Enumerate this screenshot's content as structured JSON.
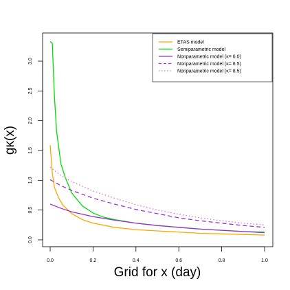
{
  "chart_data": {
    "type": "line",
    "xlabel": "Grid for x (day)",
    "ylabel": "gκ(x)",
    "xlim": [
      0,
      1
    ],
    "ylim": [
      0,
      3.3
    ],
    "xticks": [
      0.0,
      0.2,
      0.4,
      0.6,
      0.8,
      1.0
    ],
    "xtick_labels": [
      "0.0",
      "0.2",
      "0.4",
      "0.6",
      "0.8",
      "1.0"
    ],
    "yticks": [
      0.0,
      0.5,
      1.0,
      1.5,
      2.0,
      2.5,
      3.0
    ],
    "ytick_labels": [
      "0.0",
      "0.5",
      "1.0",
      "1.5",
      "2.0",
      "2.5",
      "3.0"
    ],
    "grid": false,
    "legend_position": "top-right",
    "series": [
      {
        "name": "ETAS model",
        "color": "#ffa500",
        "style": "solid",
        "x": [
          0.0,
          0.01,
          0.02,
          0.04,
          0.06,
          0.1,
          0.15,
          0.2,
          0.3,
          0.4,
          0.5,
          0.6,
          0.7,
          0.8,
          0.9,
          1.0
        ],
        "y": [
          1.59,
          1.12,
          0.88,
          0.7,
          0.58,
          0.44,
          0.34,
          0.28,
          0.21,
          0.17,
          0.15,
          0.13,
          0.11,
          0.1,
          0.09,
          0.08
        ]
      },
      {
        "name": "Semiparametric model",
        "color": "#00dd00",
        "style": "solid",
        "x": [
          0.0,
          0.01,
          0.02,
          0.03,
          0.05,
          0.07,
          0.1,
          0.15,
          0.2,
          0.25,
          0.3,
          0.4,
          0.5,
          0.6,
          0.7,
          0.8,
          0.9,
          1.0
        ],
        "y": [
          3.33,
          3.3,
          2.4,
          1.82,
          1.28,
          1.05,
          0.79,
          0.57,
          0.45,
          0.38,
          0.34,
          0.28,
          0.24,
          0.21,
          0.18,
          0.16,
          0.14,
          0.13
        ]
      },
      {
        "name": "Nonparametric model (κ= 6.0)",
        "color": "#9932cc",
        "style": "solid",
        "x": [
          0.0,
          0.05,
          0.1,
          0.2,
          0.3,
          0.4,
          0.5,
          0.6,
          0.7,
          0.8,
          0.9,
          1.0
        ],
        "y": [
          0.6,
          0.53,
          0.47,
          0.39,
          0.33,
          0.28,
          0.24,
          0.21,
          0.18,
          0.16,
          0.14,
          0.12
        ]
      },
      {
        "name": "Nonparametric model (κ= 6.5)",
        "color": "#9932cc",
        "style": "dashed",
        "x": [
          0.0,
          0.05,
          0.1,
          0.2,
          0.3,
          0.4,
          0.5,
          0.6,
          0.7,
          0.8,
          0.9,
          1.0
        ],
        "y": [
          1.01,
          0.91,
          0.83,
          0.7,
          0.6,
          0.51,
          0.44,
          0.37,
          0.32,
          0.28,
          0.24,
          0.21
        ]
      },
      {
        "name": "Nonparametric model (κ= 8.5)",
        "color": "#da70d6",
        "style": "dotted",
        "x": [
          0.0,
          0.05,
          0.1,
          0.2,
          0.3,
          0.4,
          0.5,
          0.6,
          0.7,
          0.8,
          0.9,
          1.0
        ],
        "y": [
          1.22,
          1.08,
          0.98,
          0.82,
          0.7,
          0.59,
          0.5,
          0.43,
          0.37,
          0.32,
          0.28,
          0.25
        ]
      }
    ]
  }
}
